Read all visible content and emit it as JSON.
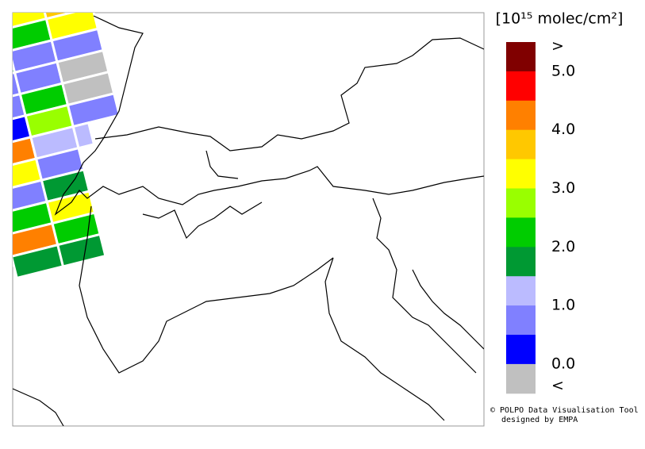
{
  "legend": {
    "title": "[10¹⁵ molec/cm²]",
    "colors": [
      "#800000",
      "#ff0000",
      "#ff8000",
      "#ffc800",
      "#ffff00",
      "#99ff00",
      "#00cc00",
      "#009933",
      "#bbbbff",
      "#8080ff",
      "#0000ff",
      "#c0c0c0"
    ],
    "labels": [
      ">",
      "5.0",
      "4.0",
      "3.0",
      "2.0",
      "1.0",
      "0.0",
      "<"
    ]
  },
  "credits": {
    "line1": "© POLPO Data Visualisation Tool",
    "line2": "designed by EMPA"
  }
}
